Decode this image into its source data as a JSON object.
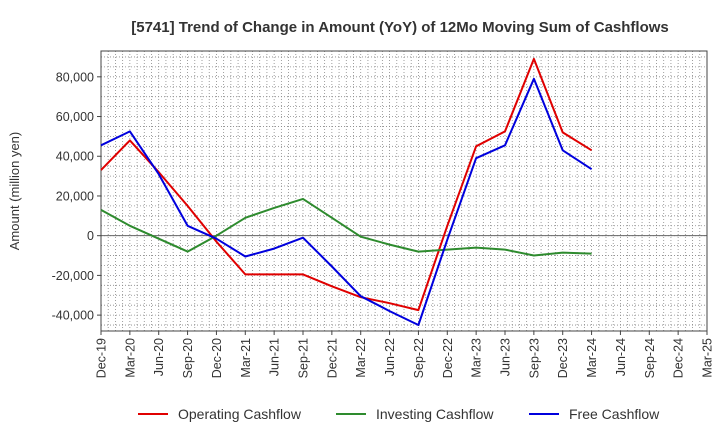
{
  "chart_data": {
    "type": "line",
    "title": "[5741]  Trend of Change in Amount (YoY) of 12Mo Moving Sum of Cashflows",
    "xlabel": "",
    "ylabel": "Amount (million yen)",
    "categories": [
      "Dec-19",
      "Mar-20",
      "Jun-20",
      "Sep-20",
      "Dec-20",
      "Mar-21",
      "Jun-21",
      "Sep-21",
      "Dec-21",
      "Mar-22",
      "Jun-22",
      "Sep-22",
      "Dec-22",
      "Mar-23",
      "Jun-23",
      "Sep-23",
      "Dec-23",
      "Mar-24",
      "Jun-24",
      "Sep-24",
      "Dec-24",
      "Mar-25"
    ],
    "y_ticks": [
      -40000,
      -20000,
      0,
      20000,
      40000,
      60000,
      80000
    ],
    "y_tick_labels": [
      "-40,000",
      "-20,000",
      "0",
      "20,000",
      "40,000",
      "60,000",
      "80,000"
    ],
    "ylim": [
      -48000,
      93000
    ],
    "grid": true,
    "legend_position": "bottom",
    "series": [
      {
        "name": "Operating Cashflow",
        "color": "#e00000",
        "values": [
          33000,
          48000,
          32000,
          15000,
          -3000,
          -19500,
          -19500,
          -19500,
          -25500,
          -31000,
          -34000,
          -37500,
          5000,
          45000,
          52500,
          89000,
          52000,
          43000,
          null,
          null,
          null,
          null
        ]
      },
      {
        "name": "Investing Cashflow",
        "color": "#2e8b2e",
        "values": [
          13000,
          5000,
          -1500,
          -8000,
          0,
          9000,
          14000,
          18500,
          9000,
          -500,
          -4500,
          -8000,
          -7000,
          -6000,
          -7000,
          -10000,
          -8500,
          -9000,
          null,
          null,
          null,
          null
        ]
      },
      {
        "name": "Free Cashflow",
        "color": "#0000dd",
        "values": [
          45500,
          52500,
          31000,
          5000,
          -1500,
          -10500,
          -6500,
          -1000,
          -15500,
          -30500,
          -38000,
          -45000,
          -2000,
          39000,
          45500,
          79000,
          43000,
          33500,
          null,
          null,
          null,
          null
        ]
      }
    ]
  }
}
